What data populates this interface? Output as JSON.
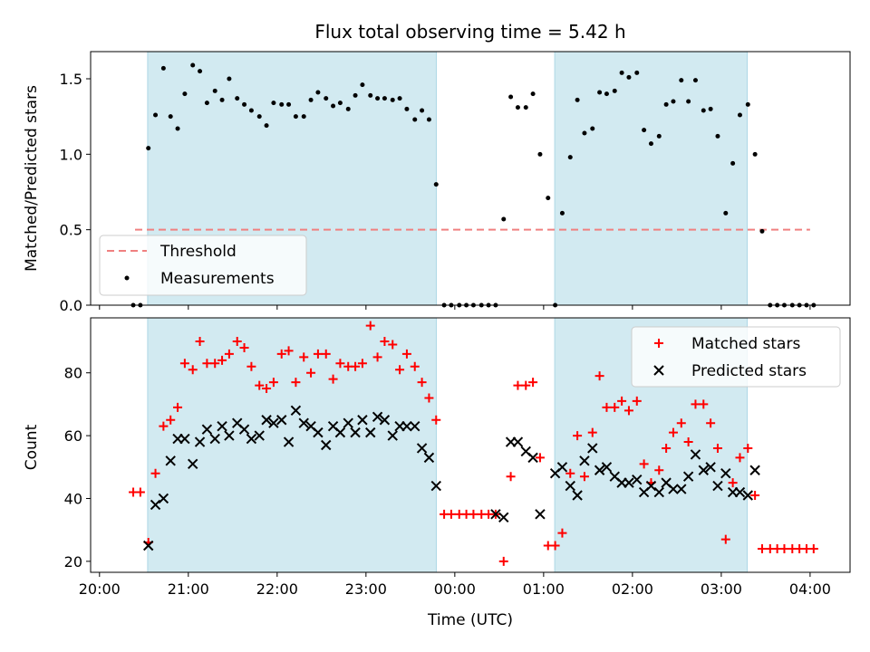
{
  "chart_data": {
    "title": "Flux total observing time = 5.42 h",
    "xlabel": "Time (UTC)",
    "x_unit": "hours since 20:00 UTC",
    "xlim": [
      -0.1,
      8.45
    ],
    "xticks": [
      {
        "value": 0,
        "label": "20:00"
      },
      {
        "value": 1,
        "label": "21:00"
      },
      {
        "value": 2,
        "label": "22:00"
      },
      {
        "value": 3,
        "label": "23:00"
      },
      {
        "value": 4,
        "label": "00:00"
      },
      {
        "value": 5,
        "label": "01:00"
      },
      {
        "value": 6,
        "label": "02:00"
      },
      {
        "value": 7,
        "label": "03:00"
      },
      {
        "value": 8,
        "label": "04:00"
      }
    ],
    "shaded_windows": [
      [
        0.542,
        3.792
      ],
      [
        5.125,
        7.292
      ]
    ],
    "shade_color": "#add8e6",
    "panels": [
      {
        "type": "scatter",
        "ylabel": "Matched/Predicted stars",
        "ylim": [
          0,
          1.68
        ],
        "yticks": [
          {
            "value": 0,
            "label": "0.0"
          },
          {
            "value": 0.5,
            "label": "0.5"
          },
          {
            "value": 1.0,
            "label": "1.0"
          },
          {
            "value": 1.5,
            "label": "1.5"
          }
        ],
        "legend": {
          "position": "lower left",
          "threshold_label": "Threshold",
          "measurements_label": "Measurements"
        },
        "threshold": {
          "value": 0.5,
          "x_range": [
            0.4,
            8.0
          ],
          "color": "#f08080"
        },
        "measurements": {
          "color": "#000000",
          "x": [
            0.38,
            0.46,
            0.55,
            0.63,
            0.72,
            0.8,
            0.88,
            0.96,
            1.05,
            1.13,
            1.21,
            1.3,
            1.38,
            1.46,
            1.55,
            1.63,
            1.71,
            1.8,
            1.88,
            1.96,
            2.05,
            2.13,
            2.21,
            2.3,
            2.38,
            2.46,
            2.55,
            2.63,
            2.71,
            2.8,
            2.88,
            2.96,
            3.05,
            3.13,
            3.21,
            3.3,
            3.38,
            3.46,
            3.55,
            3.63,
            3.71,
            3.79,
            3.88,
            3.96,
            4.05,
            4.13,
            4.21,
            4.3,
            4.38,
            4.46,
            4.55,
            4.63,
            4.71,
            4.8,
            4.88,
            4.96,
            5.05,
            5.13,
            5.21,
            5.3,
            5.38,
            5.46,
            5.55,
            5.63,
            5.71,
            5.8,
            5.88,
            5.96,
            6.05,
            6.13,
            6.21,
            6.3,
            6.38,
            6.46,
            6.55,
            6.63,
            6.71,
            6.8,
            6.88,
            6.96,
            7.05,
            7.13,
            7.21,
            7.3,
            7.38,
            7.46,
            7.55,
            7.63,
            7.71,
            7.8,
            7.88,
            7.96,
            8.04
          ],
          "y": [
            0.0,
            0.0,
            1.04,
            1.26,
            1.57,
            1.25,
            1.17,
            1.4,
            1.59,
            1.55,
            1.34,
            1.42,
            1.36,
            1.5,
            1.37,
            1.33,
            1.29,
            1.25,
            1.19,
            1.34,
            1.33,
            1.33,
            1.25,
            1.25,
            1.36,
            1.41,
            1.37,
            1.32,
            1.34,
            1.3,
            1.39,
            1.46,
            1.39,
            1.37,
            1.37,
            1.36,
            1.37,
            1.3,
            1.23,
            1.29,
            1.23,
            0.8,
            0.0,
            0.0,
            0.0,
            0.0,
            0.0,
            0.0,
            0.0,
            0.0,
            0.57,
            1.38,
            1.31,
            1.31,
            1.4,
            1.0,
            0.71,
            0.0,
            0.61,
            0.98,
            1.36,
            1.14,
            1.17,
            1.41,
            1.4,
            1.42,
            1.54,
            1.51,
            1.54,
            1.16,
            1.07,
            1.12,
            1.33,
            1.35,
            1.49,
            1.35,
            1.49,
            1.29,
            1.3,
            1.12,
            0.61,
            0.94,
            1.26,
            1.33,
            1.0,
            0.49,
            0.0,
            0.0,
            0.0,
            0.0,
            0.0,
            0.0,
            0.0
          ]
        }
      },
      {
        "type": "scatter",
        "ylabel": "Count",
        "ylim": [
          16.5,
          97.5
        ],
        "yticks": [
          {
            "value": 20,
            "label": "20"
          },
          {
            "value": 40,
            "label": "40"
          },
          {
            "value": 60,
            "label": "60"
          },
          {
            "value": 80,
            "label": "80"
          }
        ],
        "legend": {
          "position": "upper right"
        },
        "series": [
          {
            "name": "Matched stars",
            "marker": "plus",
            "color": "#ff0000",
            "x": [
              0.38,
              0.46,
              0.55,
              0.63,
              0.72,
              0.8,
              0.88,
              0.96,
              1.05,
              1.13,
              1.21,
              1.3,
              1.38,
              1.46,
              1.55,
              1.63,
              1.71,
              1.8,
              1.88,
              1.96,
              2.05,
              2.13,
              2.21,
              2.3,
              2.38,
              2.46,
              2.55,
              2.63,
              2.71,
              2.8,
              2.88,
              2.96,
              3.05,
              3.13,
              3.21,
              3.3,
              3.38,
              3.46,
              3.55,
              3.63,
              3.71,
              3.79,
              3.88,
              3.96,
              4.05,
              4.13,
              4.21,
              4.3,
              4.38,
              4.46,
              4.55,
              4.63,
              4.71,
              4.8,
              4.88,
              4.96,
              5.05,
              5.13,
              5.21,
              5.3,
              5.38,
              5.46,
              5.55,
              5.63,
              5.71,
              5.8,
              5.88,
              5.96,
              6.05,
              6.13,
              6.21,
              6.3,
              6.38,
              6.46,
              6.55,
              6.63,
              6.71,
              6.8,
              6.88,
              6.96,
              7.05,
              7.13,
              7.21,
              7.3,
              7.38,
              7.46,
              7.55,
              7.63,
              7.71,
              7.8,
              7.88,
              7.96,
              8.04
            ],
            "y": [
              42,
              42,
              26,
              48,
              63,
              65,
              69,
              83,
              81,
              90,
              83,
              83,
              84,
              86,
              90,
              88,
              82,
              76,
              75,
              77,
              86,
              87,
              77,
              85,
              80,
              86,
              86,
              78,
              83,
              82,
              82,
              83,
              95,
              85,
              90,
              89,
              81,
              86,
              82,
              77,
              72,
              65,
              35,
              35,
              35,
              35,
              35,
              35,
              35,
              35,
              20,
              47,
              76,
              76,
              77,
              53,
              25,
              25,
              29,
              48,
              60,
              47,
              61,
              79,
              69,
              69,
              71,
              68,
              71,
              51,
              45,
              49,
              56,
              61,
              64,
              58,
              70,
              70,
              64,
              56,
              27,
              45,
              53,
              56,
              41,
              24,
              24,
              24,
              24,
              24,
              24,
              24,
              24
            ]
          },
          {
            "name": "Predicted stars",
            "marker": "x",
            "color": "#000000",
            "x": [
              0.55,
              0.63,
              0.72,
              0.8,
              0.88,
              0.96,
              1.05,
              1.13,
              1.21,
              1.3,
              1.38,
              1.46,
              1.55,
              1.63,
              1.71,
              1.8,
              1.88,
              1.96,
              2.05,
              2.13,
              2.21,
              2.3,
              2.38,
              2.46,
              2.55,
              2.63,
              2.71,
              2.8,
              2.88,
              2.96,
              3.05,
              3.13,
              3.21,
              3.3,
              3.38,
              3.46,
              3.55,
              3.63,
              3.71,
              3.79,
              4.46,
              4.55,
              4.63,
              4.71,
              4.8,
              4.88,
              4.96,
              5.13,
              5.21,
              5.3,
              5.38,
              5.46,
              5.55,
              5.63,
              5.71,
              5.8,
              5.88,
              5.96,
              6.05,
              6.13,
              6.21,
              6.3,
              6.38,
              6.46,
              6.55,
              6.63,
              6.71,
              6.8,
              6.88,
              6.96,
              7.05,
              7.13,
              7.21,
              7.3,
              7.38
            ],
            "y": [
              25,
              38,
              40,
              52,
              59,
              59,
              51,
              58,
              62,
              59,
              63,
              60,
              64,
              62,
              59,
              60,
              65,
              64,
              65,
              58,
              68,
              64,
              63,
              61,
              57,
              63,
              61,
              64,
              61,
              65,
              61,
              66,
              65,
              60,
              63,
              63,
              63,
              56,
              53,
              44,
              35,
              34,
              58,
              58,
              55,
              53,
              35,
              48,
              50,
              44,
              41,
              52,
              56,
              49,
              50,
              47,
              45,
              45,
              46,
              42,
              44,
              42,
              45,
              43,
              43,
              47,
              54,
              49,
              50,
              44,
              48,
              42,
              42,
              41,
              49
            ]
          }
        ]
      }
    ]
  }
}
